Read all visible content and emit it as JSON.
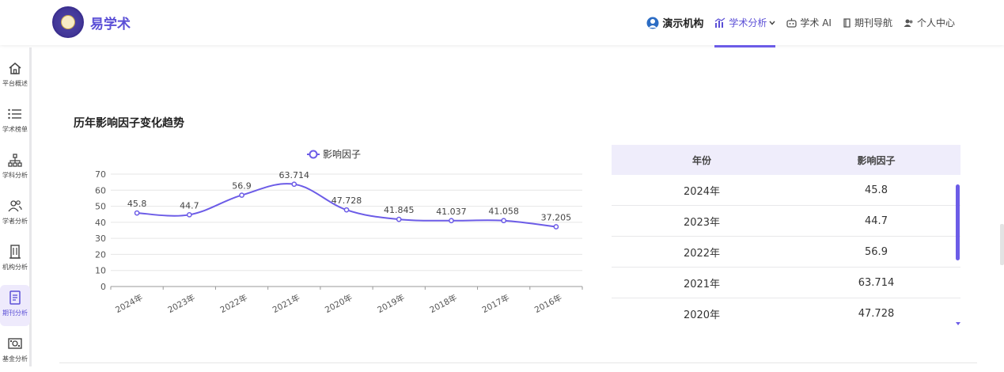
{
  "header": {
    "brand": "易学术",
    "nav": [
      {
        "label": "演示机构",
        "icon": "org-avatar-icon"
      },
      {
        "label": "学术分析",
        "icon": "bar-chart-icon",
        "active": true
      },
      {
        "label": "学术 AI",
        "icon": "robot-icon"
      },
      {
        "label": "期刊导航",
        "icon": "journal-icon"
      },
      {
        "label": "个人中心",
        "icon": "users-icon"
      }
    ]
  },
  "sidebar": {
    "items": [
      {
        "label": "平台概述",
        "icon": "home-icon"
      },
      {
        "label": "学术榜单",
        "icon": "list-icon"
      },
      {
        "label": "学科分析",
        "icon": "hierarchy-icon"
      },
      {
        "label": "学者分析",
        "icon": "scholar-icon"
      },
      {
        "label": "机构分析",
        "icon": "building-icon"
      },
      {
        "label": "期刊分析",
        "icon": "journal-doc-icon",
        "active": true
      },
      {
        "label": "基金分析",
        "icon": "money-icon"
      }
    ]
  },
  "section": {
    "title": "历年影响因子变化趋势"
  },
  "chart_data": {
    "type": "line",
    "categories": [
      "2024年",
      "2023年",
      "2022年",
      "2021年",
      "2020年",
      "2019年",
      "2018年",
      "2017年",
      "2016年"
    ],
    "series": [
      {
        "name": "影响因子",
        "values": [
          45.8,
          44.7,
          56.9,
          63.714,
          47.728,
          41.845,
          41.037,
          41.058,
          37.205
        ]
      }
    ],
    "value_labels": [
      "45.8",
      "44.7",
      "56.9",
      "63.714",
      "47.728",
      "41.845",
      "41.037",
      "41.058",
      "37.205"
    ],
    "yticks": [
      "0",
      "10",
      "20",
      "30",
      "40",
      "50",
      "60",
      "70"
    ],
    "ylim": [
      0,
      70
    ],
    "grid": true,
    "legend": "top-center",
    "color": "#6c5ce7"
  },
  "table": {
    "headers": [
      "年份",
      "影响因子"
    ],
    "rows": [
      [
        "2024年",
        "45.8"
      ],
      [
        "2023年",
        "44.7"
      ],
      [
        "2022年",
        "56.9"
      ],
      [
        "2021年",
        "63.714"
      ],
      [
        "2020年",
        "47.728"
      ]
    ]
  }
}
